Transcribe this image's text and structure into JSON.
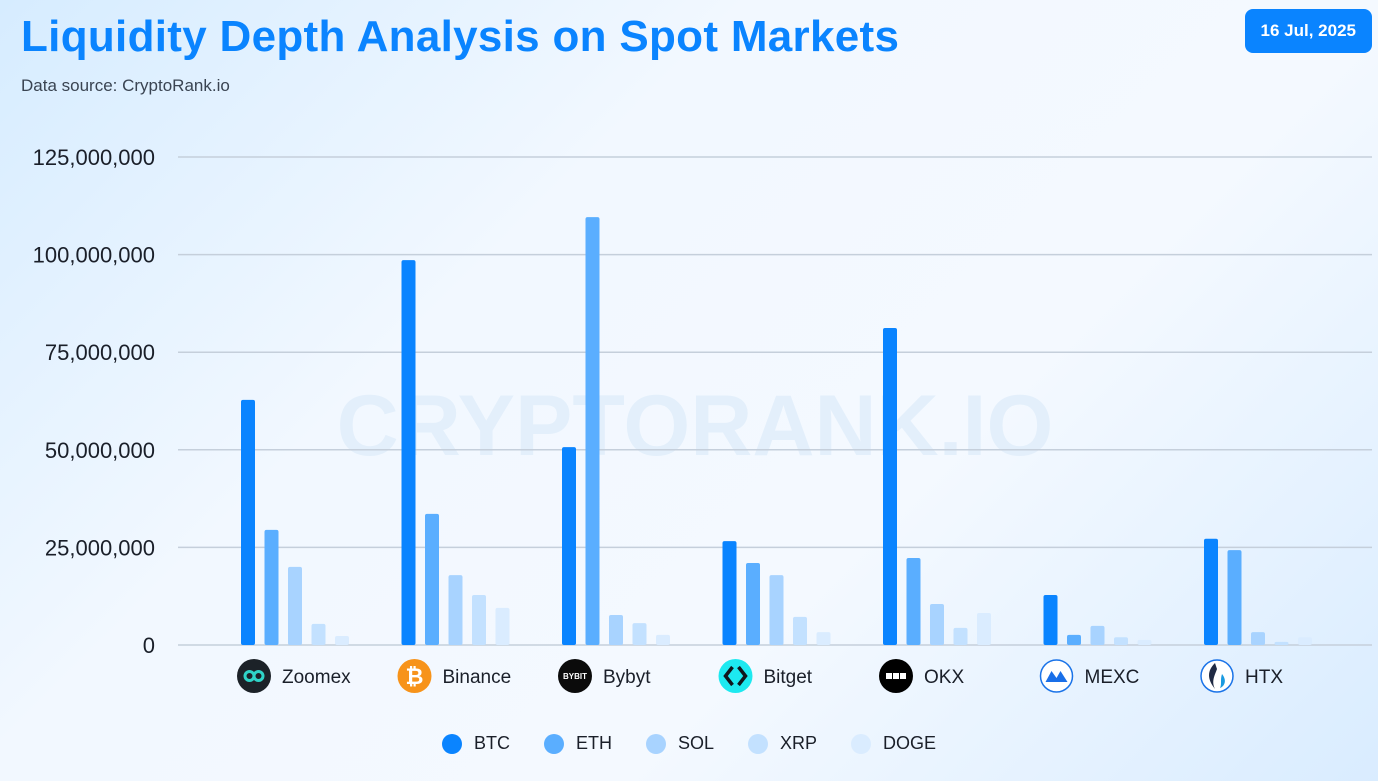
{
  "header": {
    "title": "Liquidity Depth Analysis on Spot Markets",
    "subtitle": "Data source: CryptoRank.io",
    "date": "16 Jul, 2025"
  },
  "watermark": "CRYPTORANK.IO",
  "chart_data": {
    "type": "bar",
    "title": "Liquidity Depth Analysis on Spot Markets",
    "categories": [
      "Zoomex",
      "Binance",
      "Bybyt",
      "Bitget",
      "OKX",
      "MEXC",
      "HTX"
    ],
    "category_icons": [
      "zoomex-logo-icon",
      "binance-logo-icon",
      "bybit-logo-icon",
      "bitget-logo-icon",
      "okx-logo-icon",
      "mexc-logo-icon",
      "htx-logo-icon"
    ],
    "ylim": [
      0,
      125000000
    ],
    "yticks": [
      0,
      25000000,
      50000000,
      75000000,
      100000000,
      125000000
    ],
    "ytick_labels": [
      "0",
      "25,000,000",
      "50,000,000",
      "75,000,000",
      "100,000,000",
      "125,000,000"
    ],
    "grid": true,
    "legend_position": "bottom",
    "series": [
      {
        "name": "BTC",
        "color": "#0a84ff",
        "values": [
          62800000,
          98600000,
          50700000,
          26600000,
          81200000,
          12800000,
          27200000
        ]
      },
      {
        "name": "ETH",
        "color": "#5aaeff",
        "values": [
          29500000,
          33600000,
          109600000,
          21000000,
          22300000,
          2600000,
          24300000
        ]
      },
      {
        "name": "SOL",
        "color": "#a8d3ff",
        "values": [
          20000000,
          17900000,
          7700000,
          17900000,
          10500000,
          4900000,
          3300000
        ]
      },
      {
        "name": "XRP",
        "color": "#c3e1ff",
        "values": [
          5400000,
          12800000,
          5600000,
          7200000,
          4400000,
          2000000,
          800000
        ]
      },
      {
        "name": "DOGE",
        "color": "#daecff",
        "values": [
          2300000,
          9500000,
          2600000,
          3300000,
          8200000,
          1300000,
          2000000
        ]
      }
    ]
  }
}
